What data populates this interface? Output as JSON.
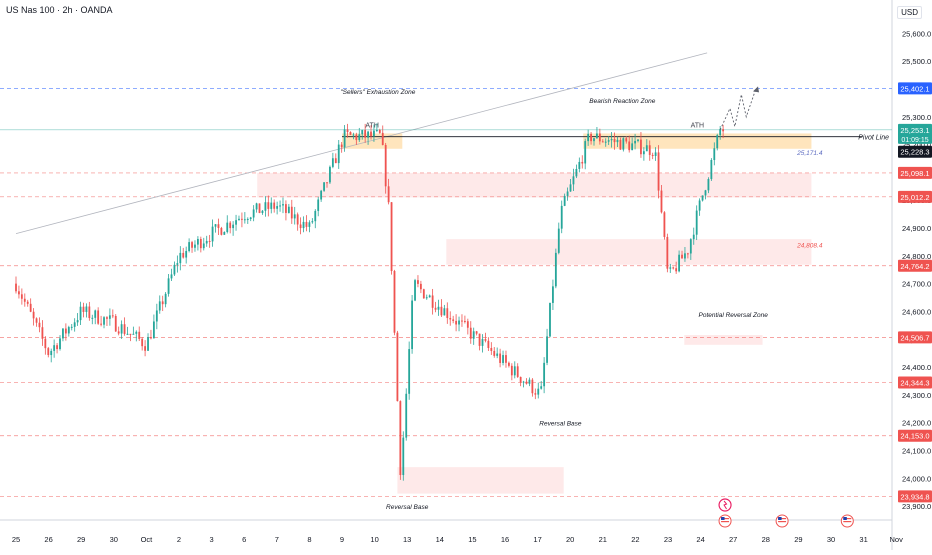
{
  "header": {
    "title": "US Nas 100 · 2h · OANDA",
    "currency": "USD"
  },
  "colors": {
    "up": "#26a69a",
    "down": "#ef5350",
    "level": "#ef5350",
    "zone_orange": "#ffe0b2",
    "zone_red": "#fde1e1",
    "accent_blue": "#2962ff",
    "pivot": "#131722"
  },
  "chart_data": {
    "type": "candlestick",
    "symbol": "US Nas 100",
    "timeframe": "2h",
    "source": "OANDA",
    "ylim": [
      23850,
      25720
    ],
    "y_ticks": [
      23900,
      24000,
      24100,
      24200,
      24300,
      24400,
      24500,
      24600,
      24700,
      24800,
      24900,
      25000,
      25100,
      25200,
      25300,
      25400,
      25500,
      25600
    ],
    "y_tick_labels": [
      "23,900.0",
      "24,000.0",
      "24,100.0",
      "24,200.0",
      "24,300.0",
      "24,400.0",
      "24,500.0",
      "24,600.0",
      "24,700.0",
      "24,800.0",
      "24,900.0",
      "25,000.0",
      "25,100.0",
      "25,200.0",
      "25,300.0",
      "25,400.0",
      "25,500.0",
      "25,600.0"
    ],
    "x_labels": [
      "25",
      "26",
      "29",
      "30",
      "Oct",
      "2",
      "3",
      "6",
      "7",
      "8",
      "9",
      "10",
      "13",
      "14",
      "15",
      "16",
      "17",
      "20",
      "21",
      "22",
      "23",
      "24",
      "27",
      "28",
      "29",
      "30",
      "31",
      "Nov"
    ],
    "x_label_index": [
      0,
      1,
      2,
      3,
      4,
      5,
      6,
      7,
      8,
      9,
      10,
      11,
      12,
      13,
      14,
      15,
      16,
      17,
      18,
      19,
      20,
      21,
      22,
      23,
      24,
      25,
      26,
      27
    ],
    "last_index": 21.7,
    "daily_closes": [
      24700,
      24450,
      24600,
      24560,
      24480,
      24800,
      24880,
      24950,
      24980,
      24900,
      25150,
      25100,
      24150,
      24800,
      24580,
      24850,
      24400,
      24900,
      25180,
      25120,
      24850,
      25200
    ],
    "key_points": [
      {
        "i": 10.05,
        "p": 25230
      },
      {
        "i": 11.2,
        "p": 25230
      },
      {
        "i": 11.45,
        "p": 24950
      },
      {
        "i": 11.8,
        "p": 24010
      },
      {
        "i": 12.2,
        "p": 24700
      },
      {
        "i": 16.1,
        "p": 24300
      },
      {
        "i": 16.7,
        "p": 24950
      },
      {
        "i": 17.6,
        "p": 25230
      },
      {
        "i": 19.6,
        "p": 25180
      },
      {
        "i": 20.0,
        "p": 24720
      },
      {
        "i": 20.6,
        "p": 24820
      },
      {
        "i": 21.6,
        "p": 25253
      }
    ],
    "projection": [
      {
        "i": 21.6,
        "p": 25253
      },
      {
        "i": 21.9,
        "p": 25330
      },
      {
        "i": 22.05,
        "p": 25265
      },
      {
        "i": 22.25,
        "p": 25380
      },
      {
        "i": 22.4,
        "p": 25300
      },
      {
        "i": 22.7,
        "p": 25402
      }
    ],
    "levels": [
      {
        "price": 25402.1,
        "label": "25,402.1",
        "color": "#2962ff"
      },
      {
        "price": 25098.1,
        "label": "25,098.1",
        "color": "#ef5350"
      },
      {
        "price": 25012.2,
        "label": "25,012.2",
        "color": "#ef5350"
      },
      {
        "price": 24764.2,
        "label": "24,764.2",
        "color": "#ef5350"
      },
      {
        "price": 24506.7,
        "label": "24,506.7",
        "color": "#ef5350"
      },
      {
        "price": 24344.3,
        "label": "24,344.3",
        "color": "#ef5350"
      },
      {
        "price": 24153.0,
        "label": "24,153.0",
        "color": "#ef5350"
      },
      {
        "price": 23934.8,
        "label": "23,934.8",
        "color": "#ef5350"
      }
    ],
    "price_badges": [
      {
        "price": 25253.1,
        "label": "25,253.1",
        "sub": "01:09:15",
        "color": "#26a69a"
      },
      {
        "price": 25228.3,
        "label": "25,228.3",
        "color": "#131722"
      }
    ],
    "pivot_line": {
      "price": 25228.3,
      "label": "Pivot Line"
    },
    "trendline": {
      "start": {
        "i": 0.0,
        "p": 24880
      },
      "end": {
        "i": 21.2,
        "p": 25530
      }
    },
    "zones": [
      {
        "i0": 10.0,
        "i1": 11.85,
        "p0": 25185,
        "p1": 25240,
        "color": "orange",
        "label": "ATH",
        "label_price": 25255
      },
      {
        "i0": 17.4,
        "i1": 24.4,
        "p0": 25185,
        "p1": 25240,
        "color": "orange",
        "label": "ATH",
        "label_price": 25255
      },
      {
        "i0": 7.4,
        "i1": 24.4,
        "p0": 25010,
        "p1": 25098,
        "color": "red",
        "label": "",
        "label_price": 0
      },
      {
        "i0": 13.2,
        "i1": 24.4,
        "p0": 24768,
        "p1": 24860,
        "color": "red",
        "label": "",
        "label_price": 0
      },
      {
        "i0": 11.7,
        "i1": 16.8,
        "p0": 23945,
        "p1": 24040,
        "color": "red",
        "label": "",
        "label_price": 0
      },
      {
        "i0": 20.5,
        "i1": 22.9,
        "p0": 24480,
        "p1": 24515,
        "color": "red",
        "label": "",
        "label_price": 0
      }
    ],
    "annotations": [
      {
        "text": "\"Sellers\" Exhaustion Zone",
        "i": 11.1,
        "p": 25382,
        "color": "#131722"
      },
      {
        "text": "Bearish Reaction Zone",
        "i": 18.6,
        "p": 25350,
        "color": "#131722"
      },
      {
        "text": "Potential Reversal Zone",
        "i": 22.0,
        "p": 24580,
        "color": "#131722"
      },
      {
        "text": "Reversal Base",
        "i": 16.7,
        "p": 24190,
        "color": "#131722"
      },
      {
        "text": "Reversal Base",
        "i": 12.0,
        "p": 23890,
        "color": "#131722"
      },
      {
        "text": "25,171.4",
        "i": 24.35,
        "p": 25162,
        "color": "#5c6bc0"
      },
      {
        "text": "24,808.4",
        "i": 24.35,
        "p": 24830,
        "color": "#ef5350"
      }
    ],
    "event_icons": [
      {
        "i": 21.75,
        "kind": "earnings"
      },
      {
        "i": 21.75,
        "kind": "flag"
      },
      {
        "i": 23.5,
        "kind": "flag"
      },
      {
        "i": 25.5,
        "kind": "flag"
      }
    ]
  }
}
